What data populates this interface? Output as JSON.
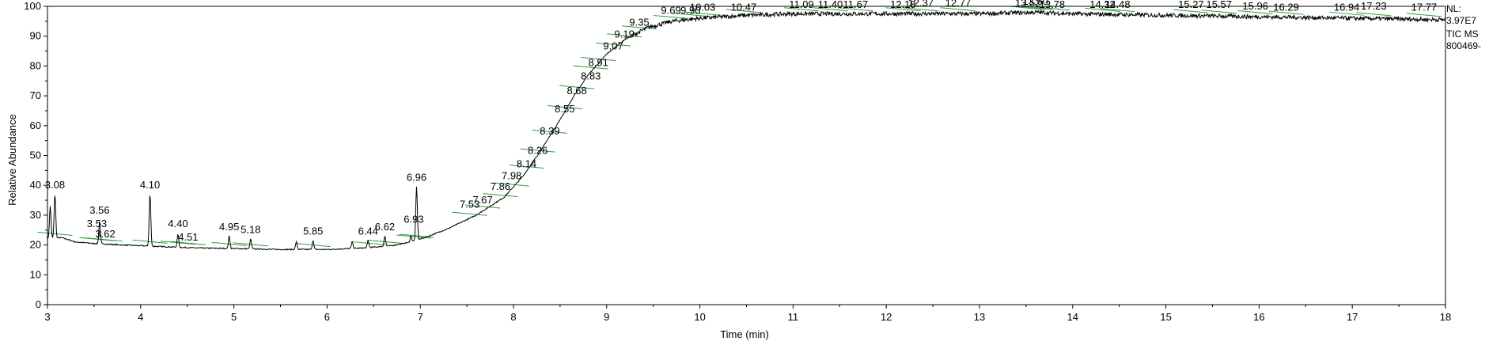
{
  "chart_data": {
    "type": "line",
    "xlabel": "Time (min)",
    "ylabel": "Relative Abundance",
    "xlim": [
      3,
      18
    ],
    "ylim": [
      0,
      100
    ],
    "x_ticks": [
      3,
      4,
      5,
      6,
      7,
      8,
      9,
      10,
      11,
      12,
      13,
      14,
      15,
      16,
      17,
      18
    ],
    "y_ticks": [
      0,
      10,
      20,
      30,
      40,
      50,
      60,
      70,
      80,
      90,
      100
    ],
    "grid": false,
    "info_text": [
      "NL:",
      "3.97E7",
      "TIC  MS",
      "800469-"
    ],
    "baseline_points": [
      [
        3.0,
        22
      ],
      [
        3.15,
        22.5
      ],
      [
        3.3,
        21
      ],
      [
        3.5,
        20.5
      ],
      [
        3.8,
        20
      ],
      [
        4.2,
        19.5
      ],
      [
        4.6,
        19
      ],
      [
        5.0,
        18.8
      ],
      [
        5.5,
        18.5
      ],
      [
        6.0,
        18.5
      ],
      [
        6.4,
        19
      ],
      [
        6.7,
        19.8
      ],
      [
        6.9,
        21
      ],
      [
        7.05,
        22.5
      ],
      [
        7.3,
        25.5
      ],
      [
        7.6,
        30
      ],
      [
        7.9,
        36
      ],
      [
        8.1,
        43
      ],
      [
        8.3,
        52
      ],
      [
        8.5,
        62
      ],
      [
        8.65,
        70
      ],
      [
        8.8,
        77
      ],
      [
        9.0,
        84
      ],
      [
        9.2,
        89
      ],
      [
        9.45,
        93
      ],
      [
        9.7,
        95
      ],
      [
        10.0,
        96
      ],
      [
        10.5,
        97
      ],
      [
        11.0,
        97.5
      ],
      [
        12.0,
        97.5
      ],
      [
        13.0,
        97.5
      ],
      [
        13.6,
        98
      ],
      [
        14.0,
        97.5
      ],
      [
        15.0,
        97
      ],
      [
        16.0,
        96.5
      ],
      [
        17.0,
        96
      ],
      [
        18.0,
        95.5
      ]
    ],
    "noise_start": 9.3,
    "spikes": [
      {
        "x": 3.03,
        "top": 33
      },
      {
        "x": 3.08,
        "top": 37
      },
      {
        "x": 3.56,
        "top": 28
      },
      {
        "x": 4.1,
        "top": 37
      },
      {
        "x": 4.4,
        "top": 23.5
      },
      {
        "x": 4.95,
        "top": 23
      },
      {
        "x": 5.18,
        "top": 22
      },
      {
        "x": 5.67,
        "top": 21
      },
      {
        "x": 5.85,
        "top": 21.5
      },
      {
        "x": 6.27,
        "top": 21
      },
      {
        "x": 6.44,
        "top": 21.5
      },
      {
        "x": 6.62,
        "top": 23
      },
      {
        "x": 6.9,
        "top": 23
      },
      {
        "x": 6.96,
        "top": 39.5
      }
    ],
    "peak_labels": [
      {
        "text": "3.08",
        "x": 3.08,
        "y": 39
      },
      {
        "text": "3.53",
        "x": 3.53,
        "y": 26
      },
      {
        "text": "3.56",
        "x": 3.56,
        "y": 30.5
      },
      {
        "text": "3.62",
        "x": 3.62,
        "y": 22.5
      },
      {
        "text": "4.10",
        "x": 4.1,
        "y": 39
      },
      {
        "text": "4.40",
        "x": 4.4,
        "y": 26
      },
      {
        "text": "4.51",
        "x": 4.51,
        "y": 21.5
      },
      {
        "text": "4.95",
        "x": 4.95,
        "y": 25
      },
      {
        "text": "5.18",
        "x": 5.18,
        "y": 24
      },
      {
        "text": "5.85",
        "x": 5.85,
        "y": 23.5
      },
      {
        "text": "6.44",
        "x": 6.44,
        "y": 23.5
      },
      {
        "text": "6.62",
        "x": 6.62,
        "y": 25
      },
      {
        "text": "6.93",
        "x": 6.93,
        "y": 27.5
      },
      {
        "text": "6.96",
        "x": 6.96,
        "y": 41.5
      },
      {
        "text": "7.53",
        "x": 7.53,
        "y": 32.5
      },
      {
        "text": "7.67",
        "x": 7.67,
        "y": 34
      },
      {
        "text": "7.86",
        "x": 7.86,
        "y": 38.5
      },
      {
        "text": "7.98",
        "x": 7.98,
        "y": 42
      },
      {
        "text": "8.14",
        "x": 8.14,
        "y": 46
      },
      {
        "text": "8.26",
        "x": 8.26,
        "y": 50.5
      },
      {
        "text": "8.39",
        "x": 8.39,
        "y": 57
      },
      {
        "text": "8.55",
        "x": 8.55,
        "y": 64.5
      },
      {
        "text": "8.68",
        "x": 8.68,
        "y": 70.5
      },
      {
        "text": "8.83",
        "x": 8.83,
        "y": 75.5
      },
      {
        "text": "8.91",
        "x": 8.91,
        "y": 80
      },
      {
        "text": "9.07",
        "x": 9.07,
        "y": 85.5
      },
      {
        "text": "9.19",
        "x": 9.19,
        "y": 89.5
      },
      {
        "text": "9.35",
        "x": 9.35,
        "y": 93.5
      },
      {
        "text": "9.69",
        "x": 9.69,
        "y": 97.5
      },
      {
        "text": "9.90",
        "x": 9.9,
        "y": 97.5
      },
      {
        "text": "10.03",
        "x": 10.03,
        "y": 98.5
      },
      {
        "text": "10.47",
        "x": 10.47,
        "y": 98.5
      },
      {
        "text": "11.09",
        "x": 11.09,
        "y": 99.5
      },
      {
        "text": "11.40",
        "x": 11.4,
        "y": 99.5
      },
      {
        "text": "11.67",
        "x": 11.67,
        "y": 99.5
      },
      {
        "text": "12.18",
        "x": 12.18,
        "y": 99.5
      },
      {
        "text": "12.37",
        "x": 12.37,
        "y": 100
      },
      {
        "text": "12.77",
        "x": 12.77,
        "y": 100
      },
      {
        "text": "13.52",
        "x": 13.52,
        "y": 100
      },
      {
        "text": "13.60",
        "x": 13.6,
        "y": 100.5
      },
      {
        "text": "13.78",
        "x": 13.78,
        "y": 99.5
      },
      {
        "text": "14.32",
        "x": 14.32,
        "y": 99.5
      },
      {
        "text": "14.48",
        "x": 14.48,
        "y": 99.5
      },
      {
        "text": "15.27",
        "x": 15.27,
        "y": 99.5
      },
      {
        "text": "15.57",
        "x": 15.57,
        "y": 99.5
      },
      {
        "text": "15.96",
        "x": 15.96,
        "y": 99
      },
      {
        "text": "16.29",
        "x": 16.29,
        "y": 98.5
      },
      {
        "text": "16.94",
        "x": 16.94,
        "y": 98.5
      },
      {
        "text": "17.23",
        "x": 17.23,
        "y": 99
      },
      {
        "text": "17.77",
        "x": 17.77,
        "y": 98.5
      }
    ],
    "colors": {
      "trace": "#000000",
      "annotation_line": "#2e9e3e",
      "axis": "#000000",
      "background": "#ffffff"
    }
  }
}
